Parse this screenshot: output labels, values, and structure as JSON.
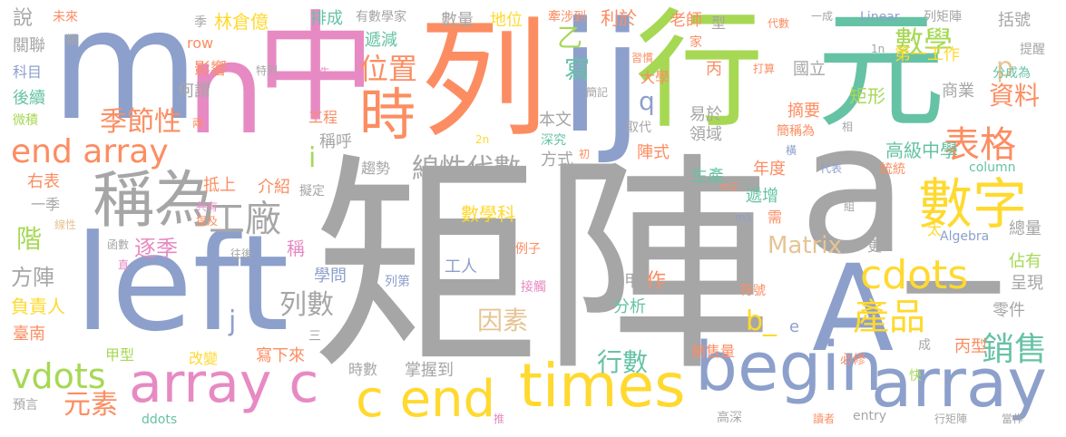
{
  "colors": {
    "gray": "#a6a6a6",
    "blue": "#8da0cb",
    "pink": "#e78ac3",
    "orange": "#fc8d62",
    "green": "#a6d854",
    "teal": "#66c2a5",
    "yellow": "#ffd92f",
    "tan": "#e5c494",
    "background": "#ffffff"
  },
  "words": [
    {
      "id": "w-juzhen",
      "text": "矩陣"
    },
    {
      "id": "w-a",
      "text": "a_"
    },
    {
      "id": "w-lie",
      "text": "列"
    },
    {
      "id": "w-hang",
      "text": "行"
    },
    {
      "id": "w-yuan",
      "text": "元"
    },
    {
      "id": "w-ij",
      "text": "ij"
    },
    {
      "id": "w-m",
      "text": "m"
    },
    {
      "id": "w-zhong",
      "text": "中"
    },
    {
      "id": "w-n",
      "text": "n"
    },
    {
      "id": "w-left",
      "text": "left"
    },
    {
      "id": "w-A",
      "text": "A"
    },
    {
      "id": "w-begin",
      "text": "begin"
    },
    {
      "id": "w-array",
      "text": "array"
    },
    {
      "id": "w-array-c",
      "text": "array c"
    },
    {
      "id": "w-c-end",
      "text": "c end"
    },
    {
      "id": "w-times",
      "text": "times"
    },
    {
      "id": "w-end-array",
      "text": "end array"
    },
    {
      "id": "w-chengwei",
      "text": "稱為"
    },
    {
      "id": "w-shuzi",
      "text": "數字"
    },
    {
      "id": "w-shi",
      "text": "時"
    },
    {
      "id": "w-gongchang",
      "text": "工廠"
    },
    {
      "id": "w-biaoge",
      "text": "表格"
    },
    {
      "id": "w-cdots",
      "text": "cdots"
    },
    {
      "id": "w-chanpin",
      "text": "產品"
    },
    {
      "id": "w-xiaoshou",
      "text": "銷售"
    },
    {
      "id": "w-vdots",
      "text": "vdots"
    },
    {
      "id": "w-xianxingdaishu",
      "text": "線性代數"
    },
    {
      "id": "w-jijiexing",
      "text": "季節性"
    },
    {
      "id": "w-weizhi",
      "text": "位置"
    },
    {
      "id": "w-shuxue",
      "text": "數學"
    },
    {
      "id": "w-ziliao",
      "text": "資料"
    },
    {
      "id": "w-matrix",
      "text": "Matrix"
    },
    {
      "id": "w-lieshu",
      "text": "列數"
    },
    {
      "id": "w-hangshu",
      "text": "行數"
    },
    {
      "id": "w-yinsu",
      "text": "因素"
    },
    {
      "id": "w-yuansu",
      "text": "元素"
    },
    {
      "id": "w-b",
      "text": "b_"
    },
    {
      "id": "w-xie",
      "text": "寫"
    },
    {
      "id": "w-yi",
      "text": "乙"
    },
    {
      "id": "w-p",
      "text": "p"
    },
    {
      "id": "w-q",
      "text": "q"
    },
    {
      "id": "w-i",
      "text": "i"
    },
    {
      "id": "w-j",
      "text": "j"
    },
    {
      "id": "w-shuo",
      "text": "說"
    },
    {
      "id": "w-guanlian",
      "text": "關聯"
    },
    {
      "id": "w-kemu",
      "text": "科目"
    },
    {
      "id": "w-houxu",
      "text": "後續"
    },
    {
      "id": "w-weiqi",
      "text": "微積"
    },
    {
      "id": "w-youbiao",
      "text": "右表"
    },
    {
      "id": "w-yiji",
      "text": "一季"
    },
    {
      "id": "w-xianxing",
      "text": "線性"
    },
    {
      "id": "w-jie",
      "text": "階"
    },
    {
      "id": "w-fangzhen",
      "text": "方陣"
    },
    {
      "id": "w-fuzeren",
      "text": "負責人"
    },
    {
      "id": "w-tainan",
      "text": "臺南"
    },
    {
      "id": "w-yuyan",
      "text": "預言"
    },
    {
      "id": "w-weilai",
      "text": "未來"
    },
    {
      "id": "w-lei",
      "text": "類"
    },
    {
      "id": "w-ji",
      "text": "季"
    },
    {
      "id": "w-linchangyi",
      "text": "林倉億"
    },
    {
      "id": "w-row",
      "text": "row"
    },
    {
      "id": "w-yingxiang",
      "text": "影響"
    },
    {
      "id": "w-tebie",
      "text": "特別"
    },
    {
      "id": "w-xian",
      "text": "先"
    },
    {
      "id": "w-heshui",
      "text": "何謂"
    },
    {
      "id": "w-liang",
      "text": "兩"
    },
    {
      "id": "w-gongcheng",
      "text": "工程"
    },
    {
      "id": "w-chenghu",
      "text": "稱呼"
    },
    {
      "id": "w-qushi",
      "text": "趨勢"
    },
    {
      "id": "w-dishang",
      "text": "抵上"
    },
    {
      "id": "w-jieshao",
      "text": "介紹"
    },
    {
      "id": "w-nizhi",
      "text": "擬定"
    },
    {
      "id": "w-gongyou",
      "text": "共有"
    },
    {
      "id": "w-tiji",
      "text": "提及"
    },
    {
      "id": "w-zhuji",
      "text": "逐季"
    },
    {
      "id": "w-cheng",
      "text": "稱"
    },
    {
      "id": "w-hanshu",
      "text": "函數"
    },
    {
      "id": "w-wanghou",
      "text": "往後"
    },
    {
      "id": "w-zhi",
      "text": "直"
    },
    {
      "id": "w-liedi",
      "text": "列第"
    },
    {
      "id": "w-xuewen",
      "text": "學問"
    },
    {
      "id": "w-gongren",
      "text": "工人"
    },
    {
      "id": "w-shuxueke",
      "text": "數學科"
    },
    {
      "id": "w-paicheng",
      "text": "排成"
    },
    {
      "id": "w-diji",
      "text": "遞減"
    },
    {
      "id": "w-youshuxuejia",
      "text": "有數學家"
    },
    {
      "id": "w-shuliang",
      "text": "數量"
    },
    {
      "id": "w-diwei",
      "text": "地位"
    },
    {
      "id": "w-qianshedao",
      "text": "牽涉到"
    },
    {
      "id": "w-liyu",
      "text": "利於"
    },
    {
      "id": "w-laoshi",
      "text": "老師"
    },
    {
      "id": "w-xing",
      "text": "型"
    },
    {
      "id": "w-daishu",
      "text": "代數"
    },
    {
      "id": "w-yicheng",
      "text": "一成"
    },
    {
      "id": "w-linear",
      "text": "Linear"
    },
    {
      "id": "w-liejuzhen",
      "text": "列矩陣"
    },
    {
      "id": "w-kuohao",
      "text": "括號"
    },
    {
      "id": "w-tixing",
      "text": "提醒"
    },
    {
      "id": "w-fenchengwei",
      "text": "分成為"
    },
    {
      "id": "w-diyigongzuo",
      "text": "第一工作"
    },
    {
      "id": "w-1n",
      "text": "1n"
    },
    {
      "id": "w-jia",
      "text": "家"
    },
    {
      "id": "w-bing",
      "text": "丙"
    },
    {
      "id": "w-dasuan",
      "text": "打算"
    },
    {
      "id": "w-guoli",
      "text": "國立"
    },
    {
      "id": "w-xiguan",
      "text": "習慣"
    },
    {
      "id": "w-daxue",
      "text": "大學"
    },
    {
      "id": "w-biji",
      "text": "簡記"
    },
    {
      "id": "w-benwen",
      "text": "本文"
    },
    {
      "id": "w-quadai",
      "text": "取代"
    },
    {
      "id": "w-shenjiu",
      "text": "深究"
    },
    {
      "id": "w-2n",
      "text": "2n"
    },
    {
      "id": "w-chu",
      "text": "初"
    },
    {
      "id": "w-fangshi",
      "text": "方式"
    },
    {
      "id": "w-zhenshi",
      "text": "陣式"
    },
    {
      "id": "w-yiyu",
      "text": "易於"
    },
    {
      "id": "w-lingyu",
      "text": "領域"
    },
    {
      "id": "w-zhaiyao",
      "text": "摘要"
    },
    {
      "id": "w-jianchengwei",
      "text": "簡稱為"
    },
    {
      "id": "w-xiang",
      "text": "相"
    },
    {
      "id": "w-heng",
      "text": "橫"
    },
    {
      "id": "w-juxing",
      "text": "矩形"
    },
    {
      "id": "w-shangye",
      "text": "商業"
    },
    {
      "id": "w-gaojizhongxue",
      "text": "高級中學"
    },
    {
      "id": "w-tongtong",
      "text": "統統"
    },
    {
      "id": "w-niandu",
      "text": "年度"
    },
    {
      "id": "w-shengchan",
      "text": "生產"
    },
    {
      "id": "w-daibiao",
      "text": "代表"
    },
    {
      "id": "w-column",
      "text": "column"
    },
    {
      "id": "w-dizeng",
      "text": "遞增"
    },
    {
      "id": "w-m2",
      "text": "m2"
    },
    {
      "id": "w-xu",
      "text": "需"
    },
    {
      "id": "w-m1",
      "text": "m1"
    },
    {
      "id": "w-zu",
      "text": "組"
    },
    {
      "id": "w-algebra",
      "text": "Algebra"
    },
    {
      "id": "w-zongliang",
      "text": "總量"
    },
    {
      "id": "w-tai",
      "text": "太"
    },
    {
      "id": "w-geng",
      "text": "更"
    },
    {
      "id": "w-lizi",
      "text": "例子"
    },
    {
      "id": "w-zhanyou",
      "text": "佔有"
    },
    {
      "id": "w-chengxian",
      "text": "呈現"
    },
    {
      "id": "w-fuhao",
      "text": "符號"
    },
    {
      "id": "w-jiechu",
      "text": "接觸"
    },
    {
      "id": "w-jia2",
      "text": "甲"
    },
    {
      "id": "w-zuo",
      "text": "作"
    },
    {
      "id": "w-fenxi",
      "text": "分析"
    },
    {
      "id": "w-lingjian",
      "text": "零件"
    },
    {
      "id": "w-e",
      "text": "e"
    },
    {
      "id": "w-san",
      "text": "三"
    },
    {
      "id": "w-jiaxing",
      "text": "甲型"
    },
    {
      "id": "w-gaibian",
      "text": "改變"
    },
    {
      "id": "w-xiexialai",
      "text": "寫下來"
    },
    {
      "id": "w-shishu",
      "text": "時數"
    },
    {
      "id": "w-zhangwodao",
      "text": "掌握到"
    },
    {
      "id": "w-xiaoshouliang",
      "text": "銷售量"
    },
    {
      "id": "w-bixiu",
      "text": "必修"
    },
    {
      "id": "w-cheng2",
      "text": "成"
    },
    {
      "id": "w-bingxing",
      "text": "丙型"
    },
    {
      "id": "w-kuai",
      "text": "快"
    },
    {
      "id": "w-ddots",
      "text": "ddots"
    },
    {
      "id": "w-tui",
      "text": "推"
    },
    {
      "id": "w-gaoshen",
      "text": "高深"
    },
    {
      "id": "w-duzhe",
      "text": "讀者"
    },
    {
      "id": "w-entry",
      "text": "entry"
    },
    {
      "id": "w-hangjuzhen",
      "text": "行矩陣"
    },
    {
      "id": "w-dangzuo",
      "text": "當作"
    }
  ]
}
